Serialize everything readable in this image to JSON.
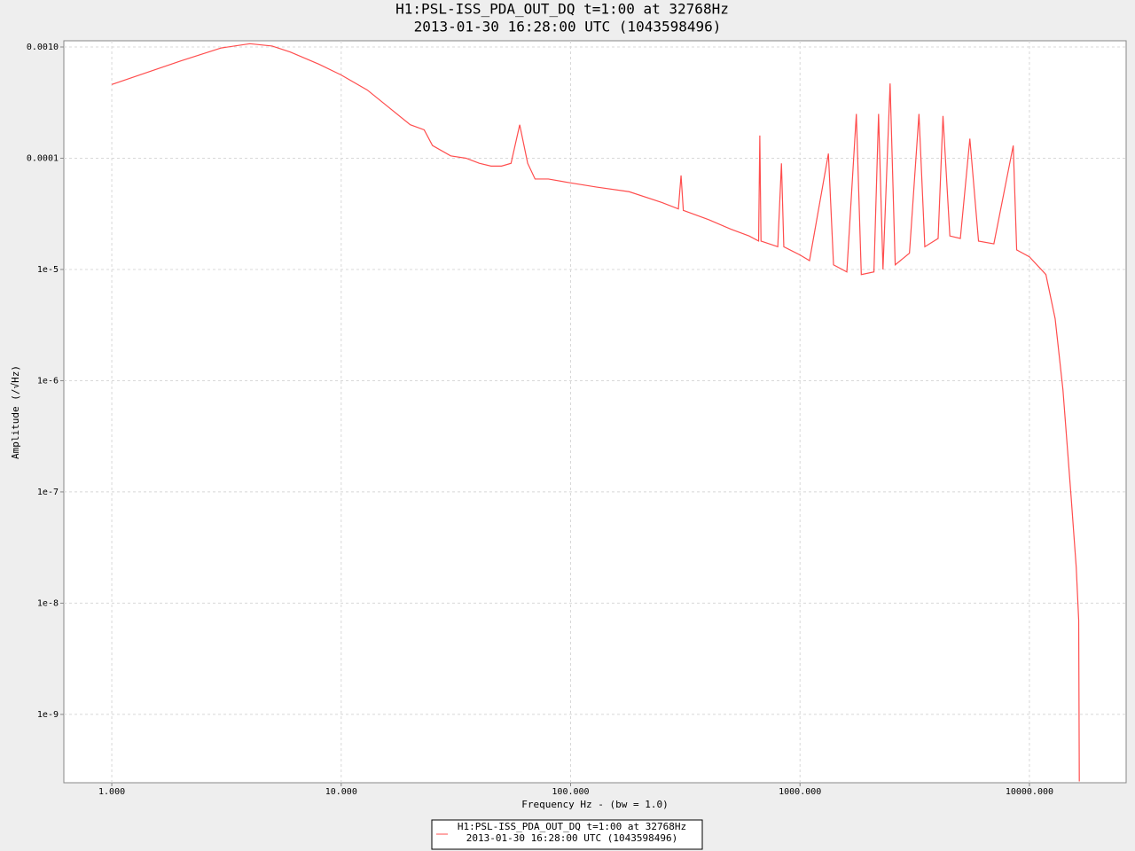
{
  "chart_data": {
    "type": "line",
    "title": [
      "H1:PSL-ISS_PDA_OUT_DQ t=1:00 at 32768Hz",
      "2013-01-30 16:28:00 UTC (1043598496)"
    ],
    "x_label": "Frequency Hz - (bw = 1.0)",
    "y_label": "Amplitude  (/√Hz)",
    "x_log": true,
    "y_log": true,
    "grid": true,
    "legend": "bottom-center",
    "xlim": [
      0.618,
      26400
    ],
    "ylim": [
      2.43e-10,
      0.001137
    ],
    "xticks": [
      {
        "value": 1,
        "label": "1.000"
      },
      {
        "value": 10,
        "label": "10.000"
      },
      {
        "value": 100,
        "label": "100.000"
      },
      {
        "value": 1000,
        "label": "1000.000"
      },
      {
        "value": 10000,
        "label": "10000.000"
      }
    ],
    "yticks": [
      {
        "value": 0.001,
        "label": "0.0010"
      },
      {
        "value": 0.0001,
        "label": "0.0001"
      },
      {
        "value": 1e-05,
        "label": "1e-5"
      },
      {
        "value": 1e-06,
        "label": "1e-6"
      },
      {
        "value": 1e-07,
        "label": "1e-7"
      },
      {
        "value": 1e-08,
        "label": "1e-8"
      },
      {
        "value": 1e-09,
        "label": "1e-9"
      }
    ],
    "x": [
      1,
      2,
      3,
      4,
      5,
      6,
      8,
      10,
      13,
      16,
      20,
      23,
      25,
      30,
      35,
      40,
      45,
      50,
      55,
      60,
      65,
      70,
      80,
      100,
      130,
      180,
      250,
      295,
      303,
      310,
      400,
      500,
      600,
      660,
      668,
      676,
      800,
      830,
      850,
      1000,
      1100,
      1330,
      1400,
      1600,
      1760,
      1850,
      2100,
      2200,
      2300,
      2470,
      2600,
      3000,
      3300,
      3500,
      4000,
      4200,
      4500,
      5000,
      5500,
      6000,
      7000,
      8500,
      8800,
      10000,
      11800,
      12950,
      14000,
      15200,
      16000,
      16400,
      16500
    ],
    "series": [
      {
        "name": [
          "H1:PSL-ISS_PDA_OUT_DQ t=1:00 at 32768Hz",
          "2013-01-30 16:28:00 UTC (1043598496)"
        ],
        "color": "#ff4d4d",
        "values": [
          0.00046,
          0.00075,
          0.00098,
          0.00107,
          0.00102,
          0.0009,
          0.0007,
          0.00056,
          0.00041,
          0.00029,
          0.0002,
          0.00018,
          0.00013,
          0.000105,
          0.0001,
          9e-05,
          8.5e-05,
          8.5e-05,
          9e-05,
          0.0002,
          9e-05,
          6.5e-05,
          6.5e-05,
          6e-05,
          5.5e-05,
          5e-05,
          4e-05,
          3.5e-05,
          7e-05,
          3.4e-05,
          2.8e-05,
          2.3e-05,
          2e-05,
          1.8e-05,
          0.00016,
          1.8e-05,
          1.6e-05,
          9e-05,
          1.6e-05,
          1.35e-05,
          1.2e-05,
          0.00011,
          1.1e-05,
          9.5e-06,
          0.00025,
          9e-06,
          9.5e-06,
          0.00025,
          1e-05,
          0.00047,
          1.1e-05,
          1.4e-05,
          0.00025,
          1.6e-05,
          1.9e-05,
          0.00024,
          2e-05,
          1.9e-05,
          0.00015,
          1.8e-05,
          1.7e-05,
          0.00013,
          1.5e-05,
          1.3e-05,
          9e-06,
          3.6e-06,
          8.3e-07,
          9e-08,
          2.1e-08,
          7e-09,
          2.5e-10
        ]
      }
    ]
  }
}
